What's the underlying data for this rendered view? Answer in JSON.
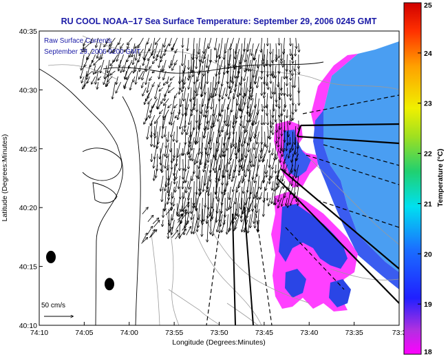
{
  "title": "RU COOL  NOAA–17  Sea Surface Temperature:  September 29, 2006 0245 GMT",
  "overlay": {
    "line1": "Raw Surface Currents",
    "line2": "September 29, 2006 0200 GMT"
  },
  "axes": {
    "xlabel": "Longitude (Degrees:Minutes)",
    "ylabel": "Latitude (Degrees:Minutes)",
    "x_ticks": [
      "74:10",
      "74:05",
      "74:00",
      "73:55",
      "73:50",
      "73:45",
      "73:40",
      "73:35",
      "73:3"
    ],
    "y_ticks": [
      "40:35",
      "40:30",
      "40:25",
      "40:20",
      "40:15",
      "40:10"
    ],
    "x_range_minutes_west": [
      70,
      30
    ],
    "y_range_minutes_north": [
      10,
      35
    ]
  },
  "colorbar": {
    "label": "Temperature (°C)",
    "ticks": [
      "25",
      "24",
      "23",
      "22",
      "21",
      "20",
      "19",
      "18"
    ],
    "range": [
      18,
      25
    ]
  },
  "scale_bar": {
    "label": "50 cm/s"
  },
  "colors": {
    "title": "#1a1aa6",
    "land": "#ffffff",
    "sst_warm_edge": "#ff40ff",
    "sst_interior": "#3a5cf0",
    "sst_offshore": "#4a9ef2",
    "vectors": "#000000",
    "contours": "#9a9a9a"
  },
  "buoys": [
    {
      "lon_min": 68.7,
      "lat_min": 15.8
    },
    {
      "lon_min": 62.2,
      "lat_min": 13.5
    }
  ]
}
